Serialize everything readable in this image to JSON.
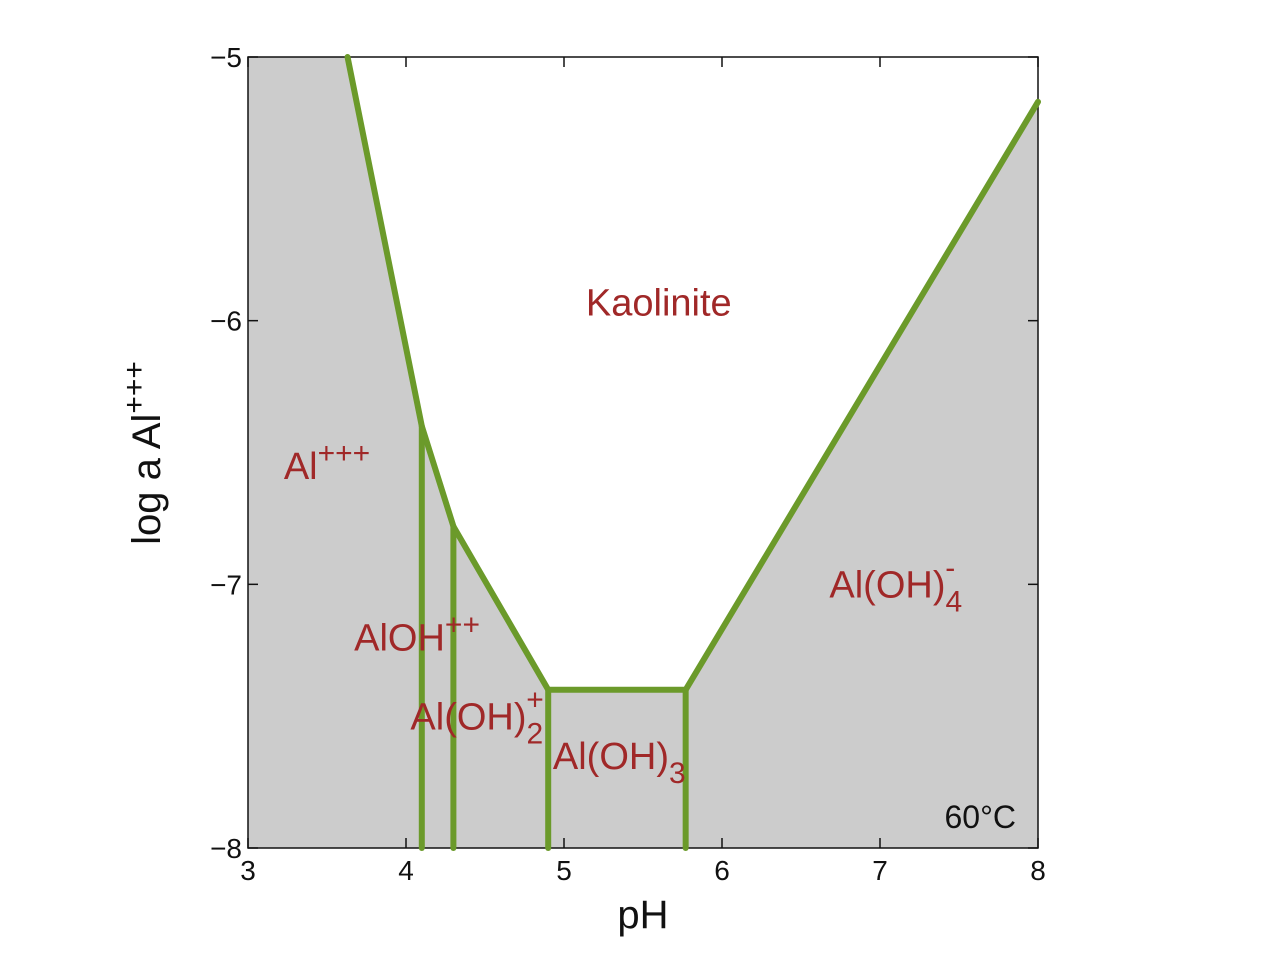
{
  "chart_data": {
    "type": "line",
    "x_axis": {
      "label": "pH",
      "range": [
        3,
        8
      ],
      "ticks": [
        3,
        4,
        5,
        6,
        7,
        8
      ],
      "tick_labels": [
        "3",
        "4",
        "5",
        "6",
        "7",
        "8"
      ]
    },
    "y_axis": {
      "label_base": "log a Al",
      "label_sup": "+++",
      "range": [
        -8,
        -5
      ],
      "ticks": [
        -5,
        -6,
        -7,
        -8
      ],
      "tick_labels": [
        "−5",
        "−6",
        "−7",
        "−8"
      ]
    },
    "boundary": {
      "color": "#6b9a2a",
      "polyline": [
        {
          "x": 3.63,
          "y": -5.0
        },
        {
          "x": 4.1,
          "y": -6.4
        },
        {
          "x": 4.3,
          "y": -6.78
        },
        {
          "x": 4.9,
          "y": -7.4
        },
        {
          "x": 5.77,
          "y": -7.4
        },
        {
          "x": 8.0,
          "y": -5.17
        }
      ],
      "verticals": [
        {
          "x": 4.1,
          "y_top": -6.4,
          "y_bottom": -8.0
        },
        {
          "x": 4.3,
          "y_top": -6.78,
          "y_bottom": -8.0
        },
        {
          "x": 4.9,
          "y_top": -7.4,
          "y_bottom": -8.0
        },
        {
          "x": 5.77,
          "y_top": -7.4,
          "y_bottom": -8.0
        }
      ]
    },
    "stable_region": {
      "name": "Kaolinite",
      "fill": "#ffffff"
    },
    "other_region_fill": "#cccccc",
    "label_color": "#a02828",
    "regions": [
      {
        "base": "Kaolinite",
        "sup": "",
        "sub": "",
        "x": 5.6,
        "y": -5.98
      },
      {
        "base": "Al",
        "sup": "+++",
        "sub": "",
        "x": 3.5,
        "y": -6.6
      },
      {
        "base": "AlOH",
        "sup": "++",
        "sub": "",
        "x": 4.07,
        "y": -7.25
      },
      {
        "base": "Al(OH)",
        "sup": "+",
        "sub": "2",
        "x": 4.45,
        "y": -7.55
      },
      {
        "base": "Al(OH)",
        "sup": "",
        "sub": "3",
        "x": 5.35,
        "y": -7.7
      },
      {
        "base": "Al(OH)",
        "sup": "-",
        "sub": "4",
        "x": 7.1,
        "y": -7.05
      }
    ],
    "annotation": "60°C",
    "grid": false
  }
}
